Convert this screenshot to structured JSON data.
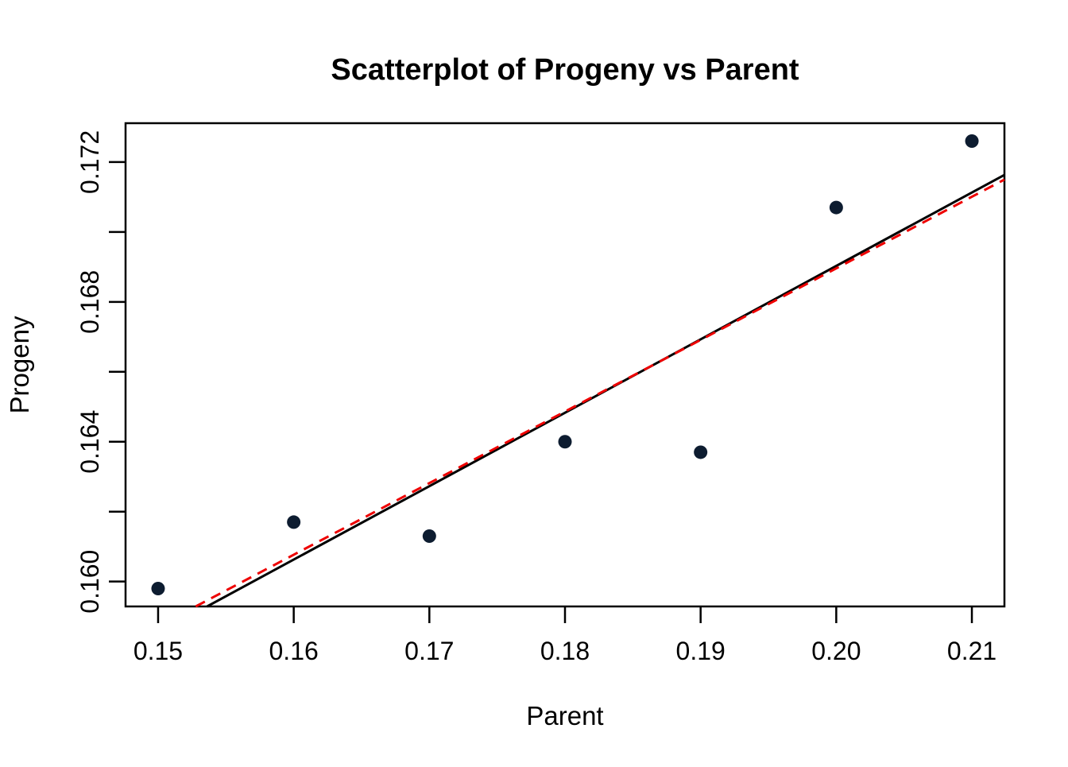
{
  "page": {
    "background": "#ffffff"
  },
  "chart_data": {
    "type": "scatter",
    "title": "Scatterplot of Progeny vs Parent",
    "xlabel": "Parent",
    "ylabel": "Progeny",
    "points": [
      {
        "x": 0.15,
        "y": 0.1598
      },
      {
        "x": 0.16,
        "y": 0.1617
      },
      {
        "x": 0.17,
        "y": 0.1613
      },
      {
        "x": 0.18,
        "y": 0.164
      },
      {
        "x": 0.19,
        "y": 0.1637
      },
      {
        "x": 0.2,
        "y": 0.1707
      },
      {
        "x": 0.21,
        "y": 0.1726
      }
    ],
    "xlim": [
      0.1476,
      0.2124
    ],
    "ylim": [
      0.159288,
      0.173112
    ],
    "x_ticks": [
      {
        "value": 0.15,
        "label": "0.15"
      },
      {
        "value": 0.16,
        "label": "0.16"
      },
      {
        "value": 0.17,
        "label": "0.17"
      },
      {
        "value": 0.18,
        "label": "0.18"
      },
      {
        "value": 0.19,
        "label": "0.19"
      },
      {
        "value": 0.2,
        "label": "0.20"
      },
      {
        "value": 0.21,
        "label": "0.21"
      }
    ],
    "y_ticks": [
      {
        "value": 0.16,
        "label": "0.160"
      },
      {
        "value": 0.162,
        "label": ""
      },
      {
        "value": 0.164,
        "label": "0.164"
      },
      {
        "value": 0.166,
        "label": ""
      },
      {
        "value": 0.168,
        "label": "0.168"
      },
      {
        "value": 0.17,
        "label": ""
      },
      {
        "value": 0.172,
        "label": "0.172"
      }
    ],
    "lines": [
      {
        "name": "ols-regression-line",
        "slope": 0.21,
        "intercept": 0.127029,
        "style": "solid",
        "color": "#000000"
      },
      {
        "name": "wls-regression-line",
        "slope": 0.2048,
        "intercept": 0.128,
        "style": "dashed",
        "color": "#ee0000"
      }
    ],
    "grid": false,
    "legend": "none",
    "point_color": "#0d1c30",
    "point_radius": 8.5,
    "axis_color": "#000000"
  }
}
